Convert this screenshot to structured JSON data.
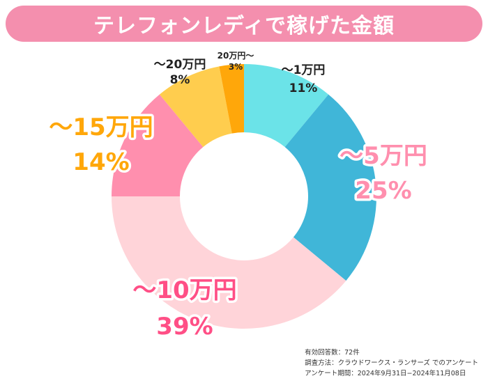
{
  "header": {
    "title": "テレフォンレディで稼げた金額"
  },
  "chart_data": {
    "type": "pie",
    "style": "donut",
    "title": "テレフォンレディで稼げた金額",
    "categories": [
      "～1万円",
      "～5万円",
      "～10万円",
      "～15万円",
      "～20万円",
      "20万円～"
    ],
    "values": [
      11,
      25,
      39,
      14,
      8,
      3
    ],
    "value_labels": [
      "11%",
      "25%",
      "39%",
      "14%",
      "8%",
      "3%"
    ],
    "colors": [
      "#6be3e8",
      "#40b6d8",
      "#ffd4d9",
      "#ff8fae",
      "#ffcd4e",
      "#ffa70a"
    ],
    "label_colors": [
      "#222222",
      "#ff8fae",
      "#ff4f86",
      "#ffa70a",
      "#222222",
      "#222222"
    ],
    "legend": "none"
  },
  "footnote": {
    "responses": "有効回答数：72件",
    "method": "調査方法：クラウドワークス・ランサーズ でのアンケート",
    "period": "アンケート期間：2024年9月31日−2024年11月08日"
  }
}
